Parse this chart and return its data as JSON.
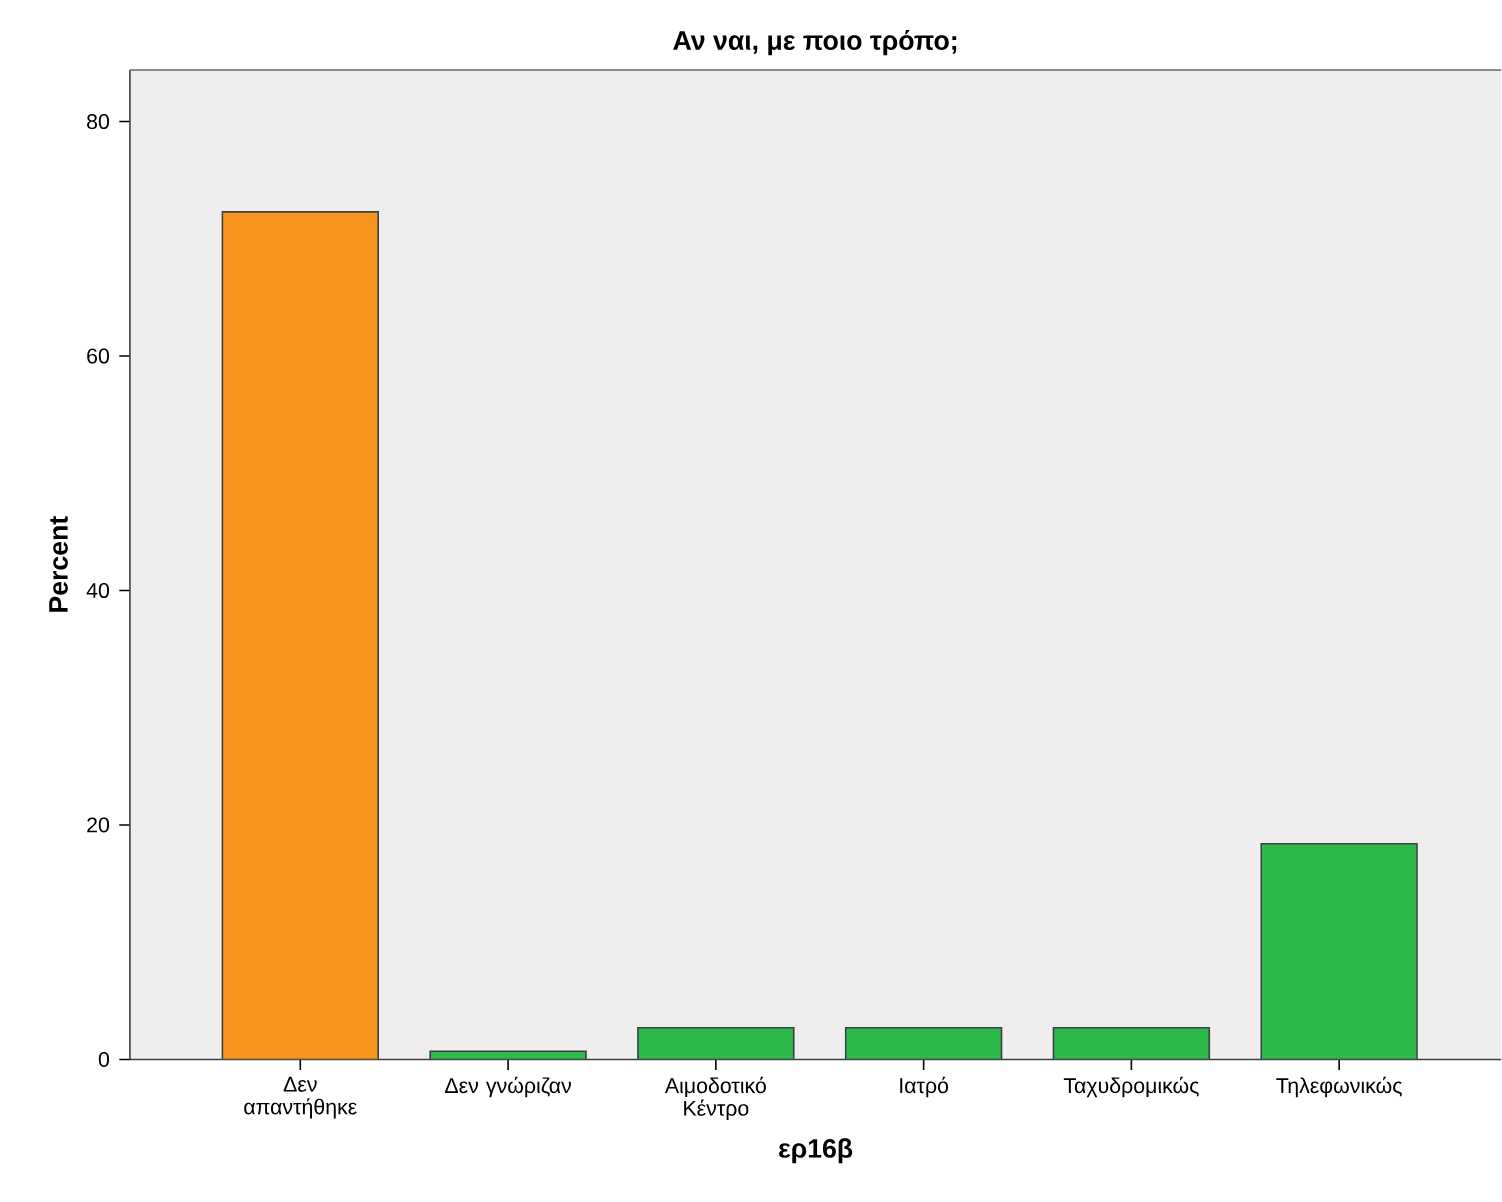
{
  "chart_data": {
    "type": "bar",
    "title": "Αν ναι, με ποιο τρόπο;",
    "xlabel": "ερ16β",
    "ylabel": "Percent",
    "categories": [
      "Δεν απαντήθηκε",
      "Δεν γνώριζαν",
      "Αιμοδοτικό Κέντρο",
      "Ιατρό",
      "Ταχυδρομικώς",
      "Τηλεφωνικώς"
    ],
    "values": [
      72.3,
      0.7,
      2.7,
      2.7,
      2.7,
      18.4
    ],
    "colors": [
      "#f7941d",
      "#2db84b",
      "#2db84b",
      "#2db84b",
      "#2db84b",
      "#2db84b"
    ],
    "ylim": [
      0,
      84.4
    ],
    "yticks": [
      0,
      20,
      40,
      60,
      80
    ],
    "grid": false
  }
}
